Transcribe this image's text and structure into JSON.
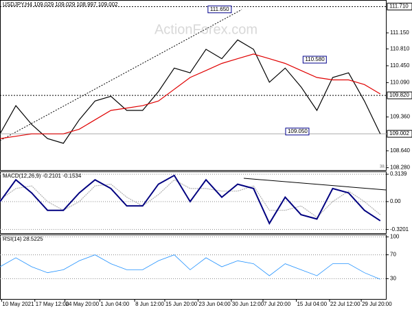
{
  "chart_data": {
    "type": "line",
    "title": "USDJPY,H4",
    "header_values": [
      109.029,
      109.029,
      108.997,
      109.002
    ],
    "watermark": "ActionForex.com",
    "xlim": [
      0,
      24.4
    ],
    "xticks": [
      {
        "value": 0.1,
        "label": "10 May 2021"
      },
      {
        "value": 2.2,
        "label": "17 May 12:00"
      },
      {
        "value": 4.1,
        "label": "24 May 20:00"
      },
      {
        "value": 6.3,
        "label": "1 Jun 04:00"
      },
      {
        "value": 8.5,
        "label": "8 Jun 12:00"
      },
      {
        "value": 10.4,
        "label": "15 Jun 20:00"
      },
      {
        "value": 12.5,
        "label": "23 Jun 04:00"
      },
      {
        "value": 14.6,
        "label": "30 Jun 12:00"
      },
      {
        "value": 16.6,
        "label": "7 Jul 20:00"
      },
      {
        "value": 18.7,
        "label": "15 Jul 04:00"
      },
      {
        "value": 20.8,
        "label": "22 Jul 12:00"
      },
      {
        "value": 22.8,
        "label": "29 Jul 20:00"
      }
    ],
    "ylim": [
      108.23,
      111.85
    ],
    "yticks": [
      {
        "value": 111.15,
        "label": "111.150"
      },
      {
        "value": 110.81,
        "label": "110.810"
      },
      {
        "value": 110.45,
        "label": "110.450"
      },
      {
        "value": 110.09,
        "label": "110.090"
      },
      {
        "value": 109.36,
        "label": "109.360"
      },
      {
        "value": 108.64,
        "label": "108.640"
      },
      {
        "value": 108.28,
        "label": "108.280"
      }
    ],
    "levels": [
      {
        "value": 111.71,
        "label": "111.710"
      },
      {
        "value": 109.82,
        "label": "109.820"
      }
    ],
    "last_price": 109.002,
    "series": [
      {
        "color": "#000000",
        "values": [
          109.0,
          109.6,
          109.2,
          108.9,
          108.8,
          109.3,
          109.7,
          109.8,
          109.5,
          109.5,
          109.9,
          110.4,
          110.3,
          110.8,
          110.6,
          111.0,
          110.8,
          110.1,
          110.4,
          110.0,
          109.5,
          110.2,
          110.3,
          109.7,
          109.0
        ]
      },
      {
        "color": "#e00000",
        "values": [
          108.9,
          108.95,
          109.0,
          109.0,
          109.0,
          109.1,
          109.3,
          109.5,
          109.55,
          109.6,
          109.7,
          109.95,
          110.2,
          110.35,
          110.5,
          110.6,
          110.7,
          110.6,
          110.5,
          110.35,
          110.2,
          110.15,
          110.15,
          110.05,
          109.85
        ]
      }
    ],
    "annotations": [
      {
        "x": 14.6,
        "value": 111.65,
        "label": "111.650"
      },
      {
        "x": 20.6,
        "value": 110.58,
        "label": "110.580"
      },
      {
        "x": 19.5,
        "value": 109.05,
        "label": "109.050"
      }
    ],
    "fib_label": "38.2",
    "macd": {
      "label": "MACD(12,26,9)",
      "main": -0.2101,
      "signal": -0.1534,
      "ylim": [
        -0.362,
        0.346
      ],
      "yticks": [
        0.3139,
        {
          "value": 0,
          "label": "0.00"
        },
        -0.3201
      ],
      "series": [
        {
          "color": "#000080",
          "values": [
            0.0,
            0.25,
            0.1,
            -0.1,
            -0.1,
            0.1,
            0.25,
            0.15,
            -0.05,
            -0.05,
            0.2,
            0.3,
            0.0,
            0.25,
            0.05,
            0.2,
            0.15,
            -0.25,
            0.05,
            -0.15,
            -0.2,
            0.15,
            0.1,
            -0.1,
            -0.22
          ]
        },
        {
          "color": "#b0b0b0",
          "values": [
            0.02,
            0.15,
            0.18,
            0.0,
            -0.1,
            0.0,
            0.18,
            0.2,
            0.05,
            -0.05,
            0.08,
            0.25,
            0.15,
            0.15,
            0.12,
            0.12,
            0.18,
            -0.1,
            -0.1,
            -0.05,
            -0.18,
            0.0,
            0.12,
            0.0,
            -0.15
          ]
        }
      ]
    },
    "rsi": {
      "label": "RSI(14)",
      "value": 28.5225,
      "ylim": [
        -4,
        104
      ],
      "yticks": [
        100,
        70,
        30
      ],
      "color": "#1e90ff",
      "values": [
        50,
        65,
        50,
        40,
        45,
        60,
        70,
        55,
        45,
        45,
        60,
        70,
        45,
        65,
        50,
        60,
        55,
        35,
        55,
        45,
        35,
        55,
        55,
        40,
        29
      ]
    }
  }
}
